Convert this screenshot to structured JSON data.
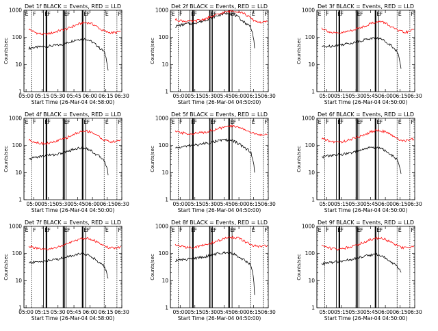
{
  "chart_data": [
    {
      "type": "line",
      "title": "Det 1f BLACK = Events, RED = LLD",
      "xlabel": "Start Time (26-Mar-04 04:58:00)",
      "ylabel": "Counts/sec",
      "yscale": "log",
      "ylim": [
        1,
        1000
      ],
      "xlim": [
        "04:58",
        "06:30"
      ],
      "xtick_labels": [
        "05:00",
        "05:15",
        "05:30",
        "05:45",
        "06:00",
        "06:15",
        "06:30"
      ],
      "ytick_labels": [
        "1",
        "10",
        "100",
        "1000"
      ],
      "markers": [
        "E",
        "F",
        "E",
        "F",
        "E",
        "F",
        "E",
        "F",
        "E",
        "F"
      ],
      "series": [
        {
          "name": "Events",
          "color": "#000000",
          "values": [
            40,
            42,
            44,
            45,
            47,
            48,
            50,
            52,
            55,
            60,
            70,
            80,
            85,
            88,
            85,
            70,
            55,
            40,
            30,
            6
          ]
        },
        {
          "name": "LLD",
          "color": "#ff0000",
          "values": [
            200,
            160,
            140,
            130,
            135,
            150,
            170,
            190,
            210,
            250,
            300,
            340,
            350,
            320,
            250,
            190,
            160,
            150,
            150,
            170
          ]
        }
      ]
    },
    {
      "type": "line",
      "title": "Det 2f BLACK = Events, RED = LLD",
      "xlabel": "Start Time (26-Mar-04 04:50:00)",
      "ylabel": "Counts/sec",
      "yscale": "log",
      "ylim": [
        1,
        1000
      ],
      "xlim": [
        "04:50",
        "06:30"
      ],
      "xtick_labels": [
        "05:00",
        "05:15",
        "05:30",
        "05:45",
        "06:00",
        "06:15",
        "06:30"
      ],
      "ytick_labels": [
        "1",
        "10",
        "100",
        "1000"
      ],
      "markers": [
        "E",
        "F",
        "E",
        "F",
        "E",
        "F",
        "E",
        "F",
        "E",
        "F"
      ],
      "series": [
        {
          "name": "Events",
          "color": "#000000",
          "values": [
            250,
            280,
            300,
            320,
            330,
            350,
            380,
            420,
            480,
            550,
            620,
            700,
            760,
            800,
            720,
            560,
            420,
            320,
            260,
            40
          ]
        },
        {
          "name": "LLD",
          "color": "#ff0000",
          "values": [
            450,
            420,
            400,
            390,
            400,
            430,
            480,
            540,
            620,
            720,
            820,
            900,
            950,
            920,
            800,
            600,
            450,
            380,
            350,
            380
          ]
        }
      ]
    },
    {
      "type": "line",
      "title": "Det 3f BLACK = Events, RED = LLD",
      "xlabel": "Start Time (26-Mar-04 04:50:00)",
      "ylabel": "Counts/sec",
      "yscale": "log",
      "ylim": [
        1,
        1000
      ],
      "xlim": [
        "04:50",
        "06:30"
      ],
      "xtick_labels": [
        "05:00",
        "05:15",
        "05:30",
        "05:45",
        "06:00",
        "06:15",
        "06:30"
      ],
      "ytick_labels": [
        "1",
        "10",
        "100",
        "1000"
      ],
      "markers": [
        "E",
        "F",
        "E",
        "F",
        "E",
        "F",
        "E",
        "F",
        "E",
        "F"
      ],
      "series": [
        {
          "name": "Events",
          "color": "#000000",
          "values": [
            45,
            46,
            48,
            50,
            52,
            55,
            58,
            62,
            66,
            72,
            80,
            88,
            92,
            94,
            90,
            75,
            60,
            45,
            30,
            7
          ]
        },
        {
          "name": "LLD",
          "color": "#ff0000",
          "values": [
            220,
            180,
            150,
            140,
            145,
            160,
            180,
            200,
            230,
            270,
            320,
            360,
            380,
            350,
            270,
            210,
            170,
            155,
            160,
            200
          ]
        }
      ]
    },
    {
      "type": "line",
      "title": "Det 4f BLACK = Events, RED = LLD",
      "xlabel": "Start Time (26-Mar-04 04:50:00)",
      "ylabel": "Counts/sec",
      "yscale": "log",
      "ylim": [
        1,
        1000
      ],
      "xlim": [
        "04:50",
        "06:30"
      ],
      "xtick_labels": [
        "05:00",
        "05:15",
        "05:30",
        "05:45",
        "06:00",
        "06:15",
        "06:30"
      ],
      "ytick_labels": [
        "1",
        "10",
        "100",
        "1000"
      ],
      "markers": [
        "E",
        "F",
        "E",
        "F",
        "E",
        "F",
        "E",
        "F",
        "E",
        "F"
      ],
      "series": [
        {
          "name": "Events",
          "color": "#000000",
          "values": [
            30,
            35,
            38,
            40,
            42,
            44,
            46,
            48,
            52,
            58,
            66,
            75,
            80,
            82,
            78,
            62,
            48,
            38,
            30,
            8
          ]
        },
        {
          "name": "LLD",
          "color": "#ff0000",
          "values": [
            160,
            140,
            125,
            118,
            120,
            130,
            150,
            170,
            200,
            240,
            290,
            330,
            340,
            310,
            240,
            180,
            150,
            135,
            140,
            160
          ]
        }
      ]
    },
    {
      "type": "line",
      "title": "Det 5f BLACK = Events, RED = LLD",
      "xlabel": "Start Time (26-Mar-04 04:50:00)",
      "ylabel": "Counts/sec",
      "yscale": "log",
      "ylim": [
        1,
        1000
      ],
      "xlim": [
        "04:50",
        "06:30"
      ],
      "xtick_labels": [
        "05:00",
        "05:15",
        "05:30",
        "05:45",
        "06:00",
        "06:15",
        "06:30"
      ],
      "ytick_labels": [
        "1",
        "10",
        "100",
        "1000"
      ],
      "markers": [
        "E",
        "F",
        "E",
        "F",
        "E",
        "F",
        "E",
        "F",
        "E",
        "F"
      ],
      "series": [
        {
          "name": "Events",
          "color": "#000000",
          "values": [
            80,
            85,
            90,
            95,
            100,
            105,
            110,
            118,
            125,
            135,
            145,
            155,
            160,
            158,
            145,
            120,
            95,
            75,
            60,
            10
          ]
        },
        {
          "name": "LLD",
          "color": "#ff0000",
          "values": [
            320,
            300,
            280,
            270,
            275,
            290,
            310,
            340,
            380,
            420,
            470,
            500,
            510,
            480,
            420,
            340,
            280,
            250,
            240,
            250
          ]
        }
      ]
    },
    {
      "type": "line",
      "title": "Det 6f BLACK = Events, RED = LLD",
      "xlabel": "Start Time (26-Mar-04 04:50:00)",
      "ylabel": "Counts/sec",
      "yscale": "log",
      "ylim": [
        1,
        1000
      ],
      "xlim": [
        "04:50",
        "06:30"
      ],
      "xtick_labels": [
        "05:00",
        "05:15",
        "05:30",
        "05:45",
        "06:00",
        "06:15",
        "06:30"
      ],
      "ytick_labels": [
        "1",
        "10",
        "100",
        "1000"
      ],
      "markers": [
        "E",
        "F",
        "E",
        "F",
        "E",
        "F",
        "E",
        "F",
        "E",
        "F"
      ],
      "series": [
        {
          "name": "Events",
          "color": "#000000",
          "values": [
            38,
            40,
            42,
            44,
            46,
            48,
            50,
            53,
            57,
            63,
            72,
            80,
            84,
            86,
            82,
            66,
            52,
            40,
            30,
            9
          ]
        },
        {
          "name": "LLD",
          "color": "#ff0000",
          "values": [
            180,
            155,
            140,
            132,
            135,
            148,
            168,
            190,
            220,
            260,
            310,
            350,
            360,
            330,
            260,
            200,
            165,
            150,
            155,
            175
          ]
        }
      ]
    },
    {
      "type": "line",
      "title": "Det 7f BLACK = Events, RED = LLD",
      "xlabel": "Start Time (26-Mar-04 04:58:00)",
      "ylabel": "Counts/sec",
      "yscale": "log",
      "ylim": [
        1,
        1000
      ],
      "xlim": [
        "04:58",
        "06:30"
      ],
      "xtick_labels": [
        "05:00",
        "05:15",
        "05:30",
        "05:45",
        "06:00",
        "06:15",
        "06:30"
      ],
      "ytick_labels": [
        "1",
        "10",
        "100",
        "1000"
      ],
      "markers": [
        "E",
        "F",
        "E",
        "F",
        "E",
        "F",
        "E",
        "F",
        "E",
        "F"
      ],
      "series": [
        {
          "name": "Events",
          "color": "#000000",
          "values": [
            45,
            47,
            49,
            51,
            53,
            56,
            59,
            63,
            68,
            74,
            82,
            90,
            95,
            96,
            92,
            76,
            60,
            46,
            34,
            12
          ]
        },
        {
          "name": "LLD",
          "color": "#ff0000",
          "values": [
            190,
            165,
            148,
            138,
            140,
            155,
            175,
            198,
            228,
            268,
            318,
            358,
            368,
            338,
            268,
            208,
            172,
            158,
            160,
            180
          ]
        }
      ]
    },
    {
      "type": "line",
      "title": "Det 8f BLACK = Events, RED = LLD",
      "xlabel": "Start Time (26-Mar-04 04:50:00)",
      "ylabel": "Counts/sec",
      "yscale": "log",
      "ylim": [
        1,
        1000
      ],
      "xlim": [
        "04:50",
        "06:30"
      ],
      "xtick_labels": [
        "05:00",
        "05:15",
        "05:30",
        "05:45",
        "06:00",
        "06:15",
        "06:30"
      ],
      "ytick_labels": [
        "1",
        "10",
        "100",
        "1000"
      ],
      "markers": [
        "E",
        "F",
        "E",
        "F",
        "E",
        "F",
        "E",
        "F",
        "E",
        "F"
      ],
      "series": [
        {
          "name": "Events",
          "color": "#000000",
          "values": [
            55,
            58,
            60,
            62,
            65,
            68,
            72,
            76,
            82,
            90,
            98,
            106,
            110,
            108,
            98,
            80,
            64,
            50,
            40,
            3
          ]
        },
        {
          "name": "LLD",
          "color": "#ff0000",
          "values": [
            210,
            190,
            175,
            168,
            172,
            185,
            205,
            228,
            258,
            298,
            348,
            388,
            398,
            368,
            298,
            238,
            198,
            182,
            180,
            195
          ]
        }
      ]
    },
    {
      "type": "line",
      "title": "Det 9f BLACK = Events, RED = LLD",
      "xlabel": "Start Time (26-Mar-04 04:50:00)",
      "ylabel": "Counts/sec",
      "yscale": "log",
      "ylim": [
        1,
        1000
      ],
      "xlim": [
        "04:50",
        "06:30"
      ],
      "xtick_labels": [
        "05:00",
        "05:15",
        "05:30",
        "05:45",
        "06:00",
        "06:15",
        "06:30"
      ],
      "ytick_labels": [
        "1",
        "10",
        "100",
        "1000"
      ],
      "markers": [
        "E",
        "F",
        "E",
        "F",
        "E",
        "F",
        "E",
        "F",
        "E",
        "F"
      ],
      "series": [
        {
          "name": "Events",
          "color": "#000000",
          "values": [
            42,
            44,
            46,
            48,
            50,
            53,
            56,
            60,
            64,
            70,
            78,
            86,
            90,
            92,
            88,
            72,
            56,
            44,
            34,
            20
          ]
        },
        {
          "name": "LLD",
          "color": "#ff0000",
          "values": [
            200,
            175,
            155,
            145,
            148,
            162,
            182,
            205,
            235,
            275,
            325,
            365,
            375,
            345,
            275,
            215,
            178,
            162,
            165,
            185
          ]
        }
      ]
    }
  ]
}
